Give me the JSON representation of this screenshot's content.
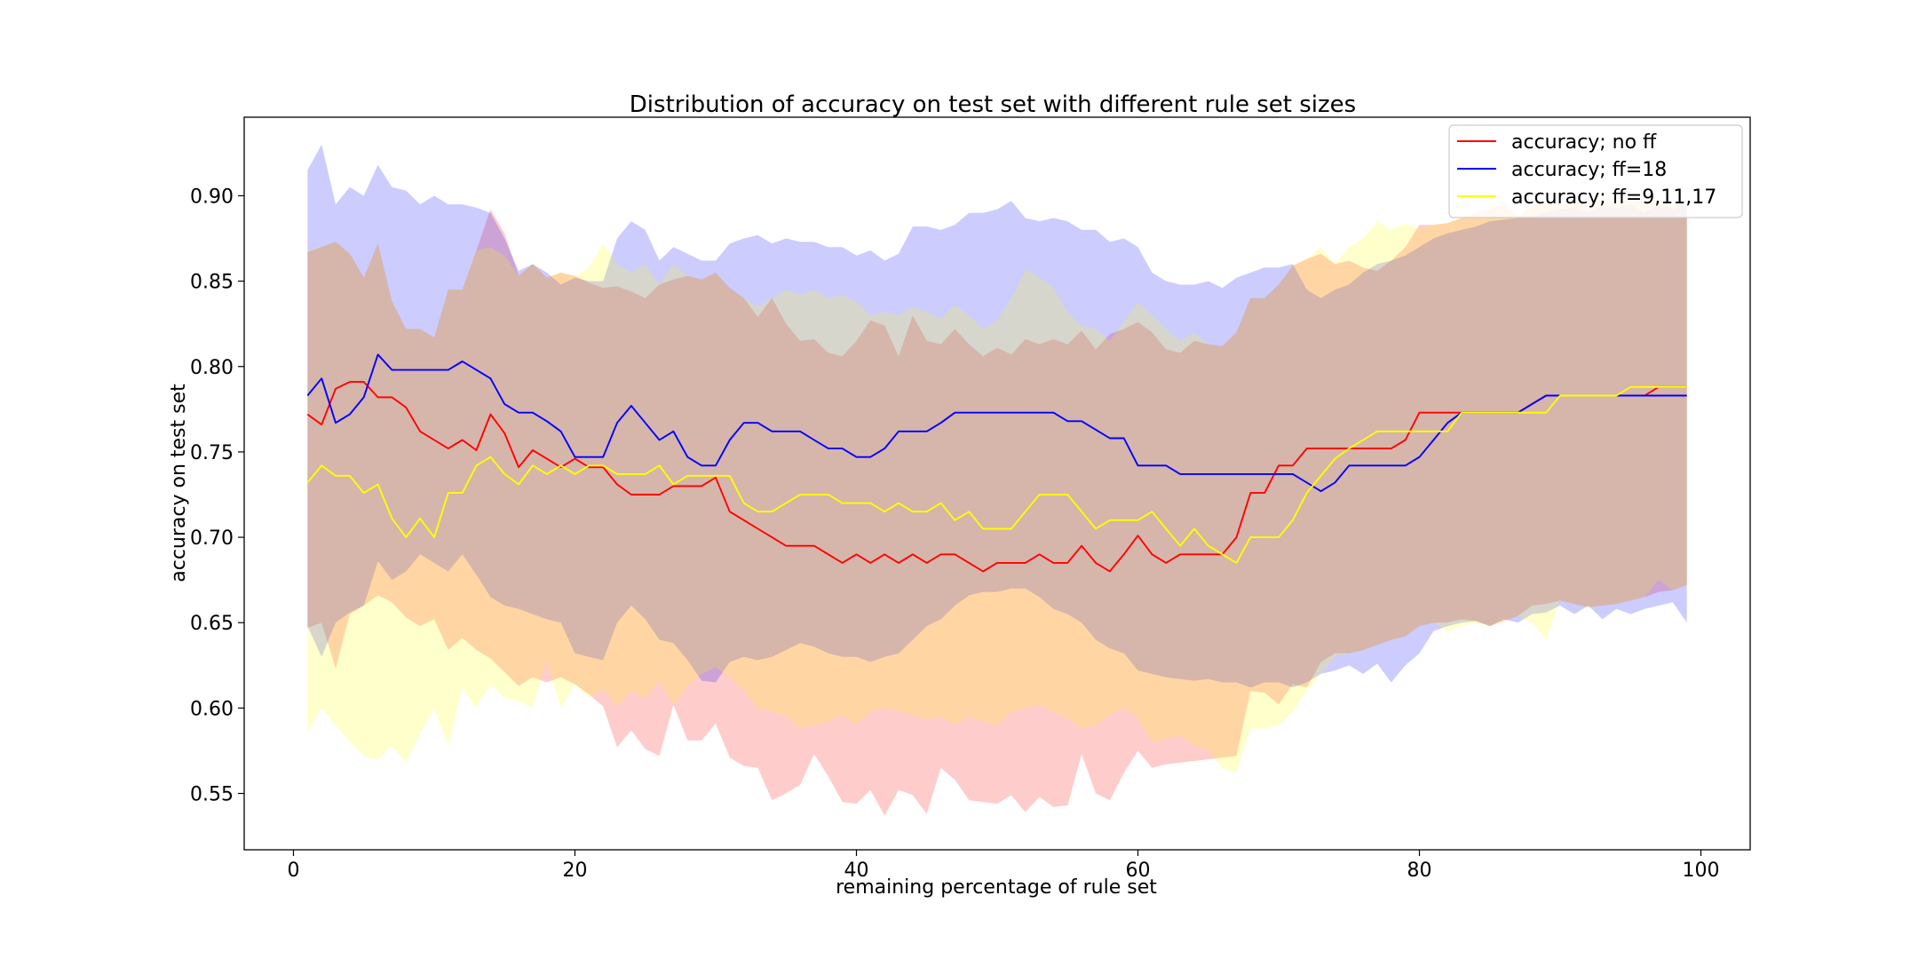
{
  "chart_data": {
    "type": "line",
    "title": "Distribution of accuracy on test set with different rule set sizes",
    "xlabel": "remaining percentage of rule set",
    "ylabel": "accuracy on test set",
    "xlim": [
      -3.5,
      103.5
    ],
    "ylim": [
      0.517,
      0.946
    ],
    "xticks": [
      0,
      20,
      40,
      60,
      80,
      100
    ],
    "yticks": [
      0.55,
      0.6,
      0.65,
      0.7,
      0.75,
      0.8,
      0.85,
      0.9
    ],
    "grid": false,
    "legend_position": "top-right",
    "x": [
      1,
      2,
      3,
      4,
      5,
      6,
      7,
      8,
      9,
      10,
      11,
      12,
      13,
      14,
      15,
      16,
      17,
      18,
      19,
      20,
      21,
      22,
      23,
      24,
      25,
      26,
      27,
      28,
      29,
      30,
      31,
      32,
      33,
      34,
      35,
      36,
      37,
      38,
      39,
      40,
      41,
      42,
      43,
      44,
      45,
      46,
      47,
      48,
      49,
      50,
      51,
      52,
      53,
      54,
      55,
      56,
      57,
      58,
      59,
      60,
      61,
      62,
      63,
      64,
      65,
      66,
      67,
      68,
      69,
      70,
      71,
      72,
      73,
      74,
      75,
      76,
      77,
      78,
      79,
      80,
      81,
      82,
      83,
      84,
      85,
      86,
      87,
      88,
      89,
      90,
      91,
      92,
      93,
      94,
      95,
      96,
      97,
      98,
      99
    ],
    "series": [
      {
        "name": "accuracy; no ff",
        "color": "#ff0000",
        "fill": "#ff0000",
        "values": [
          0.772,
          0.766,
          0.787,
          0.791,
          0.791,
          0.782,
          0.782,
          0.776,
          0.762,
          0.757,
          0.752,
          0.757,
          0.751,
          0.772,
          0.761,
          0.741,
          0.751,
          0.746,
          0.741,
          0.746,
          0.741,
          0.741,
          0.731,
          0.725,
          0.725,
          0.725,
          0.73,
          0.73,
          0.73,
          0.735,
          0.715,
          0.71,
          0.705,
          0.7,
          0.695,
          0.695,
          0.695,
          0.69,
          0.685,
          0.69,
          0.685,
          0.69,
          0.685,
          0.69,
          0.685,
          0.69,
          0.69,
          0.685,
          0.68,
          0.685,
          0.685,
          0.685,
          0.69,
          0.685,
          0.685,
          0.695,
          0.685,
          0.68,
          0.69,
          0.701,
          0.69,
          0.685,
          0.69,
          0.69,
          0.69,
          0.69,
          0.7,
          0.726,
          0.726,
          0.742,
          0.742,
          0.752,
          0.752,
          0.752,
          0.752,
          0.752,
          0.752,
          0.752,
          0.757,
          0.773,
          0.773,
          0.773,
          0.773,
          0.773,
          0.773,
          0.773,
          0.773,
          0.778,
          0.783,
          0.783,
          0.783,
          0.783,
          0.783,
          0.783,
          0.783,
          0.783,
          0.788,
          0.788,
          0.788
        ],
        "upper": [
          0.867,
          0.87,
          0.873,
          0.866,
          0.852,
          0.872,
          0.838,
          0.822,
          0.822,
          0.817,
          0.845,
          0.845,
          0.868,
          0.892,
          0.878,
          0.853,
          0.86,
          0.852,
          0.855,
          0.853,
          0.849,
          0.846,
          0.847,
          0.844,
          0.84,
          0.848,
          0.851,
          0.853,
          0.851,
          0.855,
          0.846,
          0.84,
          0.829,
          0.84,
          0.825,
          0.815,
          0.816,
          0.808,
          0.806,
          0.815,
          0.827,
          0.824,
          0.806,
          0.83,
          0.815,
          0.813,
          0.822,
          0.813,
          0.806,
          0.811,
          0.807,
          0.816,
          0.813,
          0.816,
          0.813,
          0.821,
          0.81,
          0.819,
          0.822,
          0.826,
          0.82,
          0.81,
          0.808,
          0.815,
          0.813,
          0.812,
          0.82,
          0.84,
          0.84,
          0.848,
          0.859,
          0.863,
          0.866,
          0.86,
          0.862,
          0.858,
          0.856,
          0.862,
          0.87,
          0.883,
          0.883,
          0.884,
          0.887,
          0.89,
          0.892,
          0.896,
          0.888,
          0.894,
          0.897,
          0.895,
          0.897,
          0.894,
          0.898,
          0.896,
          0.899,
          0.896,
          0.898,
          0.894,
          0.897
        ],
        "lower": [
          0.647,
          0.65,
          0.623,
          0.655,
          0.66,
          0.666,
          0.662,
          0.653,
          0.648,
          0.652,
          0.634,
          0.641,
          0.634,
          0.629,
          0.621,
          0.613,
          0.618,
          0.615,
          0.618,
          0.614,
          0.608,
          0.601,
          0.577,
          0.587,
          0.576,
          0.572,
          0.602,
          0.581,
          0.581,
          0.591,
          0.571,
          0.566,
          0.565,
          0.546,
          0.55,
          0.555,
          0.573,
          0.56,
          0.545,
          0.544,
          0.552,
          0.537,
          0.552,
          0.549,
          0.538,
          0.565,
          0.558,
          0.546,
          0.545,
          0.544,
          0.549,
          0.539,
          0.548,
          0.542,
          0.543,
          0.573,
          0.55,
          0.546,
          0.562,
          0.575,
          0.565,
          0.567,
          0.568,
          0.569,
          0.57,
          0.571,
          0.572,
          0.61,
          0.609,
          0.602,
          0.614,
          0.612,
          0.627,
          0.632,
          0.632,
          0.634,
          0.637,
          0.64,
          0.642,
          0.648,
          0.65,
          0.65,
          0.652,
          0.651,
          0.648,
          0.651,
          0.654,
          0.66,
          0.661,
          0.663,
          0.661,
          0.659,
          0.66,
          0.661,
          0.663,
          0.665,
          0.668,
          0.669,
          0.672
        ]
      },
      {
        "name": "accuracy; ff=18",
        "color": "#0000ff",
        "fill": "#0000ff",
        "values": [
          0.783,
          0.793,
          0.767,
          0.772,
          0.782,
          0.807,
          0.798,
          0.798,
          0.798,
          0.798,
          0.798,
          0.803,
          0.798,
          0.793,
          0.778,
          0.773,
          0.773,
          0.768,
          0.762,
          0.747,
          0.747,
          0.747,
          0.767,
          0.777,
          0.767,
          0.757,
          0.762,
          0.747,
          0.742,
          0.742,
          0.757,
          0.767,
          0.767,
          0.762,
          0.762,
          0.762,
          0.757,
          0.752,
          0.752,
          0.747,
          0.747,
          0.752,
          0.762,
          0.762,
          0.762,
          0.767,
          0.773,
          0.773,
          0.773,
          0.773,
          0.773,
          0.773,
          0.773,
          0.773,
          0.768,
          0.768,
          0.763,
          0.758,
          0.758,
          0.742,
          0.742,
          0.742,
          0.737,
          0.737,
          0.737,
          0.737,
          0.737,
          0.737,
          0.737,
          0.737,
          0.737,
          0.732,
          0.727,
          0.732,
          0.742,
          0.742,
          0.742,
          0.742,
          0.742,
          0.747,
          0.757,
          0.767,
          0.773,
          0.773,
          0.773,
          0.773,
          0.773,
          0.778,
          0.783,
          0.783,
          0.783,
          0.783,
          0.783,
          0.783,
          0.783,
          0.783,
          0.783,
          0.783,
          0.783
        ],
        "upper": [
          0.915,
          0.93,
          0.895,
          0.905,
          0.9,
          0.918,
          0.905,
          0.903,
          0.895,
          0.9,
          0.895,
          0.895,
          0.893,
          0.89,
          0.875,
          0.856,
          0.86,
          0.855,
          0.848,
          0.852,
          0.85,
          0.85,
          0.875,
          0.885,
          0.88,
          0.862,
          0.87,
          0.866,
          0.862,
          0.862,
          0.872,
          0.875,
          0.877,
          0.872,
          0.875,
          0.873,
          0.873,
          0.87,
          0.87,
          0.865,
          0.868,
          0.862,
          0.866,
          0.882,
          0.882,
          0.88,
          0.883,
          0.89,
          0.89,
          0.892,
          0.897,
          0.887,
          0.885,
          0.887,
          0.885,
          0.88,
          0.88,
          0.873,
          0.875,
          0.87,
          0.855,
          0.85,
          0.848,
          0.848,
          0.85,
          0.846,
          0.852,
          0.855,
          0.858,
          0.858,
          0.86,
          0.845,
          0.84,
          0.845,
          0.848,
          0.855,
          0.86,
          0.862,
          0.865,
          0.87,
          0.875,
          0.878,
          0.88,
          0.882,
          0.885,
          0.886,
          0.887,
          0.888,
          0.89,
          0.892,
          0.893,
          0.89,
          0.895,
          0.893,
          0.895,
          0.89,
          0.895,
          0.892,
          0.895
        ],
        "lower": [
          0.648,
          0.63,
          0.65,
          0.656,
          0.66,
          0.686,
          0.675,
          0.68,
          0.69,
          0.685,
          0.68,
          0.69,
          0.678,
          0.665,
          0.66,
          0.658,
          0.655,
          0.652,
          0.65,
          0.632,
          0.63,
          0.628,
          0.65,
          0.66,
          0.652,
          0.64,
          0.638,
          0.628,
          0.616,
          0.615,
          0.627,
          0.63,
          0.628,
          0.63,
          0.634,
          0.638,
          0.636,
          0.632,
          0.63,
          0.63,
          0.627,
          0.63,
          0.632,
          0.64,
          0.648,
          0.652,
          0.66,
          0.666,
          0.668,
          0.668,
          0.67,
          0.67,
          0.665,
          0.658,
          0.655,
          0.65,
          0.64,
          0.635,
          0.632,
          0.622,
          0.62,
          0.618,
          0.617,
          0.616,
          0.617,
          0.615,
          0.615,
          0.612,
          0.615,
          0.615,
          0.612,
          0.615,
          0.62,
          0.622,
          0.625,
          0.62,
          0.626,
          0.615,
          0.625,
          0.632,
          0.645,
          0.648,
          0.65,
          0.651,
          0.648,
          0.652,
          0.65,
          0.655,
          0.656,
          0.66,
          0.655,
          0.66,
          0.652,
          0.658,
          0.655,
          0.658,
          0.66,
          0.662,
          0.65
        ]
      },
      {
        "name": "accuracy; ff=9,11,17",
        "color": "#ffff00",
        "fill": "#ffff00",
        "values": [
          0.732,
          0.742,
          0.736,
          0.736,
          0.726,
          0.731,
          0.711,
          0.7,
          0.711,
          0.7,
          0.726,
          0.726,
          0.742,
          0.747,
          0.737,
          0.731,
          0.742,
          0.737,
          0.742,
          0.737,
          0.742,
          0.742,
          0.737,
          0.737,
          0.737,
          0.742,
          0.731,
          0.736,
          0.736,
          0.736,
          0.736,
          0.72,
          0.715,
          0.715,
          0.72,
          0.725,
          0.725,
          0.725,
          0.72,
          0.72,
          0.72,
          0.715,
          0.72,
          0.715,
          0.715,
          0.72,
          0.71,
          0.715,
          0.705,
          0.705,
          0.705,
          0.715,
          0.725,
          0.725,
          0.725,
          0.715,
          0.705,
          0.71,
          0.71,
          0.71,
          0.715,
          0.705,
          0.695,
          0.705,
          0.695,
          0.69,
          0.685,
          0.7,
          0.7,
          0.7,
          0.71,
          0.726,
          0.736,
          0.746,
          0.752,
          0.757,
          0.762,
          0.762,
          0.762,
          0.762,
          0.762,
          0.762,
          0.773,
          0.773,
          0.773,
          0.773,
          0.773,
          0.773,
          0.773,
          0.783,
          0.783,
          0.783,
          0.783,
          0.783,
          0.788,
          0.788,
          0.788,
          0.788,
          0.788
        ],
        "upper": [
          0.868,
          0.87,
          0.873,
          0.866,
          0.852,
          0.872,
          0.838,
          0.822,
          0.822,
          0.817,
          0.845,
          0.845,
          0.868,
          0.87,
          0.865,
          0.853,
          0.86,
          0.852,
          0.855,
          0.853,
          0.858,
          0.872,
          0.86,
          0.855,
          0.86,
          0.848,
          0.86,
          0.853,
          0.851,
          0.855,
          0.846,
          0.84,
          0.835,
          0.84,
          0.845,
          0.842,
          0.845,
          0.84,
          0.842,
          0.838,
          0.83,
          0.832,
          0.83,
          0.835,
          0.832,
          0.828,
          0.836,
          0.83,
          0.822,
          0.827,
          0.84,
          0.857,
          0.852,
          0.846,
          0.832,
          0.824,
          0.822,
          0.815,
          0.826,
          0.838,
          0.83,
          0.822,
          0.815,
          0.82,
          0.813,
          0.812,
          0.82,
          0.84,
          0.84,
          0.848,
          0.859,
          0.863,
          0.87,
          0.86,
          0.87,
          0.875,
          0.885,
          0.88,
          0.884,
          0.88,
          0.883,
          0.884,
          0.887,
          0.89,
          0.892,
          0.896,
          0.888,
          0.894,
          0.897,
          0.895,
          0.897,
          0.894,
          0.898,
          0.896,
          0.899,
          0.896,
          0.898,
          0.894,
          0.897
        ],
        "lower": [
          0.586,
          0.6,
          0.59,
          0.58,
          0.572,
          0.57,
          0.578,
          0.568,
          0.585,
          0.6,
          0.578,
          0.612,
          0.6,
          0.614,
          0.606,
          0.604,
          0.6,
          0.628,
          0.6,
          0.614,
          0.606,
          0.611,
          0.601,
          0.61,
          0.606,
          0.616,
          0.602,
          0.613,
          0.62,
          0.624,
          0.618,
          0.61,
          0.6,
          0.598,
          0.595,
          0.588,
          0.59,
          0.592,
          0.596,
          0.59,
          0.598,
          0.6,
          0.598,
          0.596,
          0.593,
          0.595,
          0.59,
          0.595,
          0.592,
          0.59,
          0.598,
          0.6,
          0.602,
          0.598,
          0.594,
          0.588,
          0.59,
          0.596,
          0.6,
          0.594,
          0.58,
          0.582,
          0.584,
          0.578,
          0.575,
          0.565,
          0.562,
          0.588,
          0.588,
          0.59,
          0.598,
          0.61,
          0.62,
          0.63,
          0.632,
          0.634,
          0.637,
          0.64,
          0.642,
          0.648,
          0.65,
          0.645,
          0.648,
          0.65,
          0.648,
          0.651,
          0.654,
          0.65,
          0.64,
          0.663,
          0.661,
          0.659,
          0.66,
          0.661,
          0.663,
          0.665,
          0.675,
          0.669,
          0.672
        ]
      }
    ]
  }
}
